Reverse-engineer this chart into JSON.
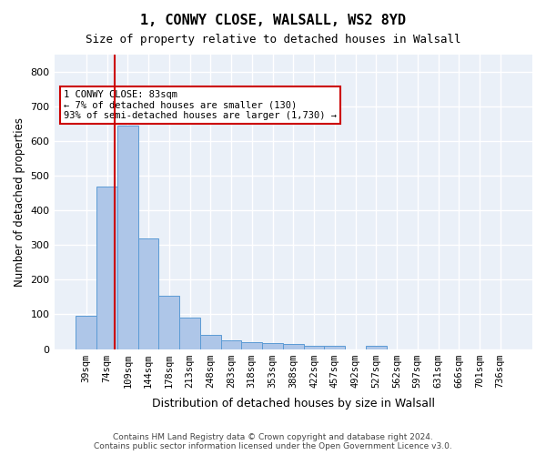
{
  "title1": "1, CONWY CLOSE, WALSALL, WS2 8YD",
  "title2": "Size of property relative to detached houses in Walsall",
  "xlabel": "Distribution of detached houses by size in Walsall",
  "ylabel": "Number of detached properties",
  "footer1": "Contains HM Land Registry data © Crown copyright and database right 2024.",
  "footer2": "Contains public sector information licensed under the Open Government Licence v3.0.",
  "bar_labels": [
    "39sqm",
    "74sqm",
    "109sqm",
    "144sqm",
    "178sqm",
    "213sqm",
    "248sqm",
    "283sqm",
    "318sqm",
    "353sqm",
    "388sqm",
    "422sqm",
    "457sqm",
    "492sqm",
    "527sqm",
    "562sqm",
    "597sqm",
    "631sqm",
    "666sqm",
    "701sqm",
    "736sqm"
  ],
  "bar_values": [
    95,
    470,
    645,
    320,
    153,
    92,
    40,
    25,
    20,
    16,
    15,
    10,
    8,
    0,
    8,
    0,
    0,
    0,
    0,
    0,
    0
  ],
  "bar_color": "#aec6e8",
  "bar_edge_color": "#5b9bd5",
  "bg_color": "#eaf0f8",
  "grid_color": "#ffffff",
  "vline_x": 1.35,
  "vline_color": "#cc0000",
  "annotation_text": "1 CONWY CLOSE: 83sqm\n← 7% of detached houses are smaller (130)\n93% of semi-detached houses are larger (1,730) →",
  "annotation_box_color": "#cc0000",
  "ylim": [
    0,
    850
  ],
  "yticks": [
    0,
    100,
    200,
    300,
    400,
    500,
    600,
    700,
    800
  ]
}
